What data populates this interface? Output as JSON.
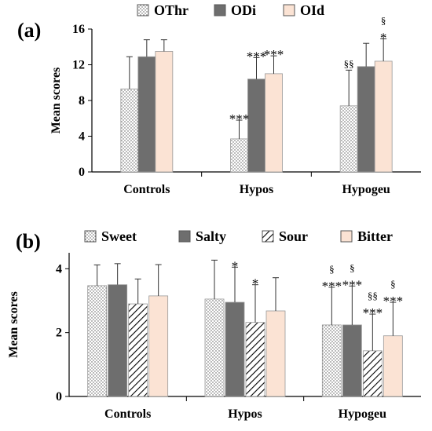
{
  "chart_data": [
    {
      "panel_label": "(a)",
      "type": "bar",
      "ylabel": "Mean scores",
      "ylim": [
        0,
        16
      ],
      "yticks": [
        "0",
        "4",
        "8",
        "12",
        "16"
      ],
      "categories": [
        "Controls",
        "Hypos",
        "Hypogeu"
      ],
      "legend_position": "top",
      "series": [
        {
          "name": "OThr",
          "pattern": "dots",
          "color": "#ffffff",
          "values": [
            9.3,
            3.7,
            7.4
          ],
          "errors": [
            3.6,
            2.1,
            4.0
          ]
        },
        {
          "name": "ODi",
          "pattern": "solid",
          "color": "#6e6e6e",
          "values": [
            12.9,
            10.4,
            11.8
          ],
          "errors": [
            1.9,
            2.4,
            2.6
          ]
        },
        {
          "name": "OId",
          "pattern": "solid",
          "color": "#fbe3d4",
          "values": [
            13.5,
            11.0,
            12.4
          ],
          "errors": [
            1.3,
            2.0,
            2.5
          ]
        }
      ],
      "annotations": [
        {
          "category": 1,
          "series": 0,
          "lines": [
            "***"
          ]
        },
        {
          "category": 1,
          "series": 1,
          "lines": [
            "***"
          ]
        },
        {
          "category": 1,
          "series": 2,
          "lines": [
            "***"
          ]
        },
        {
          "category": 2,
          "series": 0,
          "lines": [
            "§§"
          ]
        },
        {
          "category": 2,
          "series": 2,
          "lines": [
            "§",
            "*"
          ]
        }
      ]
    },
    {
      "panel_label": "(b)",
      "type": "bar",
      "ylabel": "Mean scores",
      "ylim": [
        0,
        4.5
      ],
      "yticks": [
        "0",
        "2",
        "4"
      ],
      "categories": [
        "Controls",
        "Hypos",
        "Hypogeu"
      ],
      "legend_position": "top",
      "series": [
        {
          "name": "Sweet",
          "pattern": "dots",
          "color": "#ffffff",
          "values": [
            3.47,
            3.05,
            2.24
          ],
          "errors": [
            0.65,
            1.22,
            1.18
          ]
        },
        {
          "name": "Salty",
          "pattern": "solid",
          "color": "#6e6e6e",
          "values": [
            3.5,
            2.95,
            2.24
          ],
          "errors": [
            0.66,
            1.1,
            1.22
          ]
        },
        {
          "name": "Sour",
          "pattern": "hatch",
          "color": "#ffffff",
          "values": [
            2.9,
            2.32,
            1.43
          ],
          "errors": [
            0.78,
            1.18,
            1.15
          ]
        },
        {
          "name": "Bitter",
          "pattern": "solid",
          "color": "#fbe3d4",
          "values": [
            3.15,
            2.68,
            1.9
          ],
          "errors": [
            0.98,
            1.04,
            1.05
          ]
        }
      ],
      "annotations": [
        {
          "category": 1,
          "series": 1,
          "lines": [
            "*"
          ]
        },
        {
          "category": 1,
          "series": 2,
          "lines": [
            "*"
          ]
        },
        {
          "category": 2,
          "series": 0,
          "lines": [
            "§",
            "***"
          ]
        },
        {
          "category": 2,
          "series": 1,
          "lines": [
            "§",
            "***"
          ]
        },
        {
          "category": 2,
          "series": 2,
          "lines": [
            "§§",
            "***"
          ]
        },
        {
          "category": 2,
          "series": 3,
          "lines": [
            "§",
            "***"
          ]
        }
      ]
    }
  ]
}
